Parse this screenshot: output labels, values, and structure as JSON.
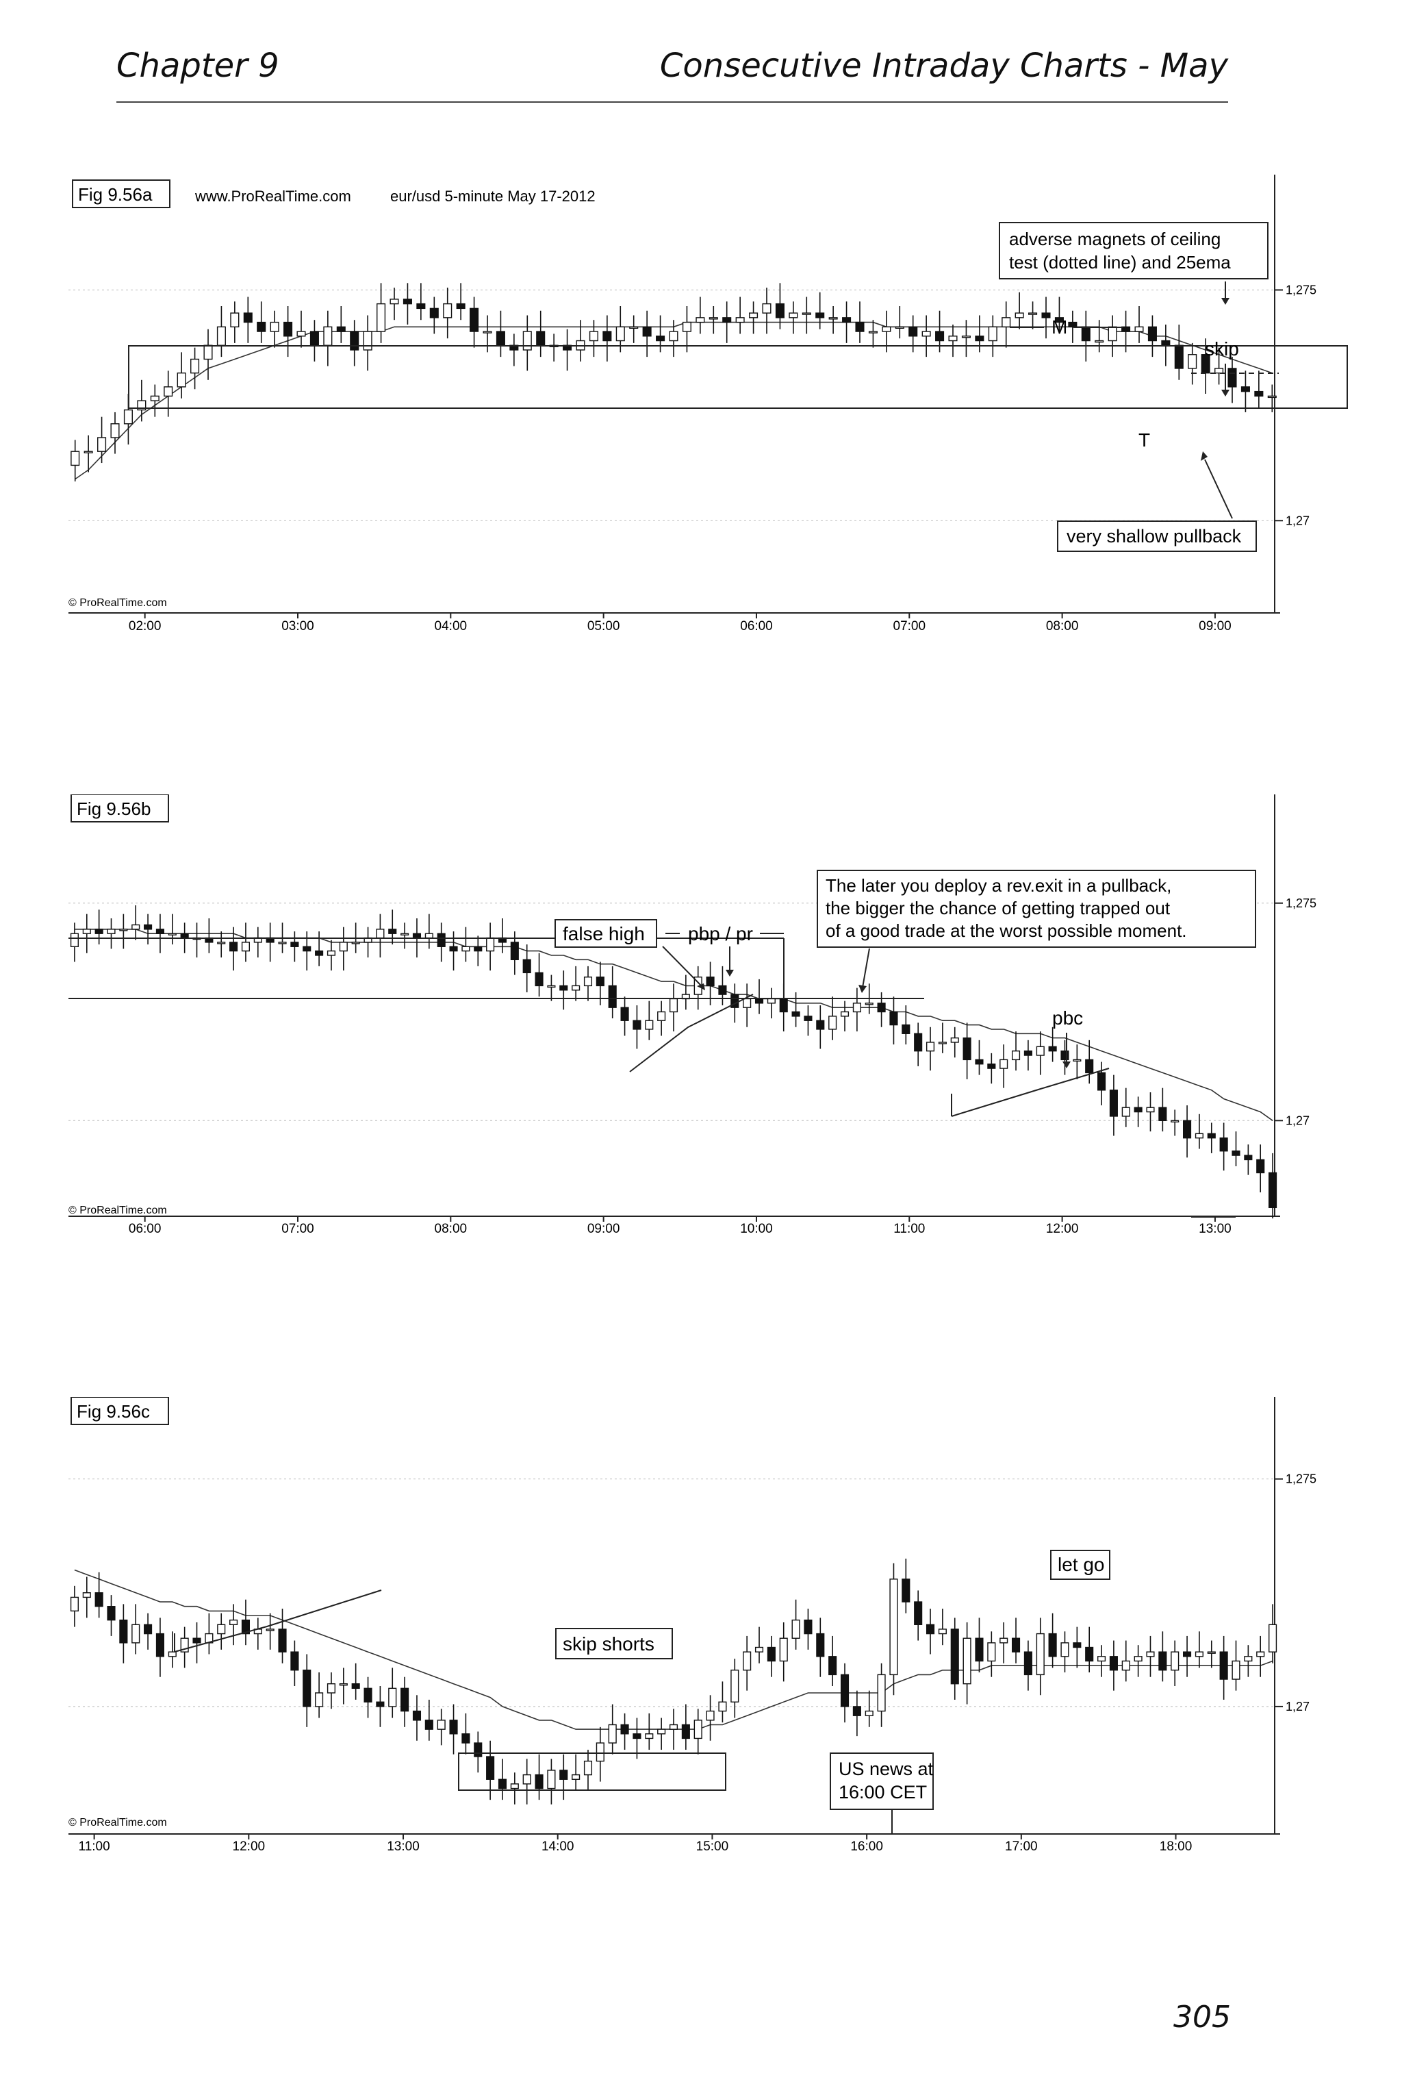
{
  "header": {
    "left": "Chapter 9",
    "right": "Consecutive Intraday Charts - May"
  },
  "page_number": "305",
  "charts": [
    {
      "fig_label": "Fig 9.56a",
      "subtitle_source": "www.ProRealTime.com",
      "subtitle_desc": "eur/usd  5-minute  May 17-2012",
      "watermark": "© ProRealTime.com",
      "price_labels": [
        {
          "price": 1.275,
          "text": "1,275"
        },
        {
          "price": 1.27,
          "text": "1,27"
        }
      ],
      "times": [
        "02:00",
        "03:00",
        "04:00",
        "05:00",
        "06:00",
        "07:00",
        "08:00",
        "09:00"
      ],
      "annotations": [
        {
          "id": "magnets",
          "lines": [
            "adverse magnets of ceiling",
            "test (dotted line) and 25ema"
          ],
          "boxed": true
        },
        {
          "id": "m",
          "text": "M",
          "boxed": false
        },
        {
          "id": "skip",
          "text": "skip",
          "boxed": false
        },
        {
          "id": "t",
          "text": "T",
          "boxed": false
        },
        {
          "id": "shallow",
          "text": "very shallow pullback",
          "boxed": true
        }
      ]
    },
    {
      "fig_label": "Fig 9.56b",
      "watermark": "© ProRealTime.com",
      "price_labels": [
        {
          "price": 1.275,
          "text": "1,275"
        },
        {
          "price": 1.27,
          "text": "1,27"
        }
      ],
      "times": [
        "06:00",
        "07:00",
        "08:00",
        "09:00",
        "10:00",
        "11:00",
        "12:00",
        "13:00"
      ],
      "annotations": [
        {
          "id": "false-high",
          "text": "false high",
          "boxed": true
        },
        {
          "id": "pbp",
          "text": "pbp / pr",
          "boxed": false
        },
        {
          "id": "later",
          "lines": [
            "The later you deploy a rev.exit in a pullback,",
            "the bigger the chance of getting trapped out",
            "of a good trade at the worst possible moment."
          ],
          "boxed": true
        },
        {
          "id": "pbc",
          "text": "pbc",
          "boxed": false
        }
      ]
    },
    {
      "fig_label": "Fig 9.56c",
      "watermark": "© ProRealTime.com",
      "price_labels": [
        {
          "price": 1.275,
          "text": "1,275"
        },
        {
          "price": 1.27,
          "text": "1,27"
        }
      ],
      "times": [
        "11:00",
        "12:00",
        "13:00",
        "14:00",
        "15:00",
        "16:00",
        "17:00",
        "18:00"
      ],
      "annotations": [
        {
          "id": "let-go",
          "text": "let go",
          "boxed": true
        },
        {
          "id": "skip-shorts",
          "text": "skip shorts",
          "boxed": true
        },
        {
          "id": "us-news",
          "lines": [
            "US news at",
            "16:00 CET"
          ],
          "boxed": true
        }
      ]
    }
  ],
  "chart_data": [
    {
      "type": "candlestick",
      "title": "eur/usd 5-minute May 17-2012",
      "x_range": [
        "01:30",
        "09:25"
      ],
      "ylim": [
        1.268,
        1.2775
      ],
      "grid": true,
      "close": [
        1.2715,
        1.2715,
        1.2718,
        1.2721,
        1.2724,
        1.2726,
        1.2727,
        1.2729,
        1.2732,
        1.2735,
        1.2738,
        1.2742,
        1.2745,
        1.2743,
        1.2741,
        1.2743,
        1.274,
        1.2741,
        1.2738,
        1.2742,
        1.2741,
        1.2737,
        1.2741,
        1.2747,
        1.2748,
        1.2747,
        1.2746,
        1.2744,
        1.2747,
        1.2746,
        1.2741,
        1.2741,
        1.2738,
        1.2737,
        1.2741,
        1.2738,
        1.2738,
        1.2737,
        1.2739,
        1.2741,
        1.2739,
        1.2742,
        1.2742,
        1.274,
        1.2739,
        1.2741,
        1.2743,
        1.2744,
        1.2744,
        1.2743,
        1.2744,
        1.2745,
        1.2747,
        1.2744,
        1.2745,
        1.2745,
        1.2744,
        1.2744,
        1.2743,
        1.2741,
        1.2741,
        1.2742,
        1.2742,
        1.274,
        1.2741,
        1.2739,
        1.274,
        1.274,
        1.2739,
        1.2742,
        1.2744,
        1.2745,
        1.2745,
        1.2744,
        1.2743,
        1.2742,
        1.2739,
        1.2739,
        1.2742,
        1.2741,
        1.2742,
        1.2739,
        1.2738,
        1.2733,
        1.2736,
        1.2732,
        1.2733,
        1.2729,
        1.2728,
        1.2727,
        1.2727
      ],
      "ema25": [
        1.2709,
        1.2711,
        1.2714,
        1.2717,
        1.272,
        1.2723,
        1.2725,
        1.2727,
        1.2729,
        1.2731,
        1.2733,
        1.2734,
        1.2735,
        1.2736,
        1.2737,
        1.2738,
        1.2739,
        1.274,
        1.2741,
        1.2741,
        1.2741,
        1.2741,
        1.2741,
        1.2741,
        1.2742,
        1.2742,
        1.2742,
        1.2742,
        1.2742,
        1.2742,
        1.2742,
        1.2742,
        1.2742,
        1.2742,
        1.2742,
        1.2742,
        1.2742,
        1.2742,
        1.2742,
        1.2742,
        1.2742,
        1.2742,
        1.2742,
        1.2742,
        1.2742,
        1.2742,
        1.2743,
        1.2743,
        1.2743,
        1.2743,
        1.2743,
        1.2743,
        1.2743,
        1.2743,
        1.2743,
        1.2743,
        1.2743,
        1.2743,
        1.2743,
        1.2743,
        1.2743,
        1.2742,
        1.2742,
        1.2742,
        1.2742,
        1.2742,
        1.2742,
        1.2742,
        1.2742,
        1.2742,
        1.2742,
        1.2742,
        1.2742,
        1.2742,
        1.2742,
        1.2742,
        1.2742,
        1.2742,
        1.2741,
        1.2741,
        1.2741,
        1.274,
        1.274,
        1.2739,
        1.2738,
        1.2737,
        1.2736,
        1.2735,
        1.2734,
        1.2733,
        1.2732
      ]
    },
    {
      "type": "candlestick",
      "title": "",
      "x_range": [
        "05:30",
        "13:25"
      ],
      "ylim": [
        1.2678,
        1.2775
      ],
      "grid": true,
      "close": [
        1.2743,
        1.2744,
        1.2743,
        1.2744,
        1.2744,
        1.2745,
        1.2744,
        1.2743,
        1.2743,
        1.2742,
        1.2742,
        1.2741,
        1.2741,
        1.2739,
        1.2741,
        1.2742,
        1.2741,
        1.2741,
        1.274,
        1.2739,
        1.2738,
        1.2739,
        1.2741,
        1.2741,
        1.2742,
        1.2744,
        1.2743,
        1.2743,
        1.2742,
        1.2743,
        1.274,
        1.2739,
        1.274,
        1.2739,
        1.2742,
        1.2741,
        1.2737,
        1.2734,
        1.2731,
        1.2731,
        1.273,
        1.2731,
        1.2733,
        1.2731,
        1.2726,
        1.2723,
        1.2721,
        1.2723,
        1.2725,
        1.2728,
        1.2729,
        1.2733,
        1.2731,
        1.2729,
        1.2726,
        1.2728,
        1.2727,
        1.2728,
        1.2725,
        1.2724,
        1.2723,
        1.2721,
        1.2724,
        1.2725,
        1.2727,
        1.2727,
        1.2725,
        1.2722,
        1.272,
        1.2716,
        1.2718,
        1.2718,
        1.2719,
        1.2714,
        1.2713,
        1.2712,
        1.2714,
        1.2716,
        1.2715,
        1.2717,
        1.2716,
        1.2714,
        1.2714,
        1.2711,
        1.2707,
        1.2701,
        1.2703,
        1.2702,
        1.2703,
        1.27,
        1.27,
        1.2696,
        1.2697,
        1.2696,
        1.2693,
        1.2692,
        1.2691,
        1.2688,
        1.268
      ],
      "ema25": [
        1.2744,
        1.2744,
        1.2744,
        1.2744,
        1.2744,
        1.2744,
        1.2743,
        1.2743,
        1.2743,
        1.2743,
        1.2743,
        1.2743,
        1.2743,
        1.2743,
        1.2742,
        1.2742,
        1.2742,
        1.2742,
        1.2742,
        1.2742,
        1.2742,
        1.2741,
        1.2741,
        1.2741,
        1.2741,
        1.2741,
        1.2741,
        1.2741,
        1.2741,
        1.2741,
        1.2741,
        1.2741,
        1.274,
        1.274,
        1.274,
        1.274,
        1.274,
        1.2739,
        1.2739,
        1.2738,
        1.2738,
        1.2737,
        1.2737,
        1.2736,
        1.2736,
        1.2735,
        1.2734,
        1.2733,
        1.2732,
        1.2732,
        1.2731,
        1.2731,
        1.2731,
        1.273,
        1.2729,
        1.2729,
        1.2728,
        1.2728,
        1.2728,
        1.2727,
        1.2727,
        1.2727,
        1.2726,
        1.2726,
        1.2726,
        1.2726,
        1.2726,
        1.2725,
        1.2725,
        1.2724,
        1.2724,
        1.2723,
        1.2723,
        1.2722,
        1.2722,
        1.2721,
        1.2721,
        1.272,
        1.272,
        1.272,
        1.2719,
        1.2719,
        1.2718,
        1.2717,
        1.2716,
        1.2715,
        1.2714,
        1.2713,
        1.2712,
        1.2711,
        1.271,
        1.2709,
        1.2708,
        1.2707,
        1.2705,
        1.2704,
        1.2703,
        1.2702,
        1.27
      ]
    },
    {
      "type": "candlestick",
      "title": "",
      "x_range": [
        "10:50",
        "18:40"
      ],
      "ylim": [
        1.2672,
        1.2768
      ],
      "grid": true,
      "close": [
        1.2724,
        1.2725,
        1.2722,
        1.2719,
        1.2714,
        1.2718,
        1.2716,
        1.2711,
        1.2712,
        1.2715,
        1.2714,
        1.2716,
        1.2718,
        1.2719,
        1.2716,
        1.2717,
        1.2717,
        1.2712,
        1.2708,
        1.27,
        1.2703,
        1.2705,
        1.2705,
        1.2704,
        1.2701,
        1.27,
        1.2704,
        1.2699,
        1.2697,
        1.2695,
        1.2697,
        1.2694,
        1.2692,
        1.2689,
        1.2684,
        1.2682,
        1.2683,
        1.2685,
        1.2682,
        1.2686,
        1.2684,
        1.2685,
        1.2688,
        1.2692,
        1.2696,
        1.2694,
        1.2693,
        1.2694,
        1.2695,
        1.2696,
        1.2693,
        1.2697,
        1.2699,
        1.2701,
        1.2708,
        1.2712,
        1.2713,
        1.271,
        1.2715,
        1.2719,
        1.2716,
        1.2711,
        1.2707,
        1.27,
        1.2698,
        1.2699,
        1.2707,
        1.2728,
        1.2723,
        1.2718,
        1.2716,
        1.2717,
        1.2705,
        1.2715,
        1.271,
        1.2714,
        1.2715,
        1.2712,
        1.2707,
        1.2716,
        1.2711,
        1.2714,
        1.2713,
        1.271,
        1.2711,
        1.2708,
        1.271,
        1.2711,
        1.2712,
        1.2708,
        1.2712,
        1.2711,
        1.2712,
        1.2712,
        1.2706,
        1.271,
        1.2711,
        1.2712,
        1.2718
      ],
      "ema25": [
        1.273,
        1.2729,
        1.2728,
        1.2727,
        1.2726,
        1.2725,
        1.2724,
        1.2723,
        1.2723,
        1.2722,
        1.2722,
        1.2721,
        1.2721,
        1.2721,
        1.272,
        1.272,
        1.272,
        1.2719,
        1.2718,
        1.2717,
        1.2716,
        1.2715,
        1.2714,
        1.2713,
        1.2712,
        1.2711,
        1.271,
        1.2709,
        1.2708,
        1.2707,
        1.2706,
        1.2705,
        1.2704,
        1.2703,
        1.2702,
        1.27,
        1.2699,
        1.2698,
        1.2697,
        1.2697,
        1.2696,
        1.2695,
        1.2695,
        1.2695,
        1.2695,
        1.2695,
        1.2695,
        1.2695,
        1.2695,
        1.2695,
        1.2695,
        1.2695,
        1.2696,
        1.2696,
        1.2697,
        1.2698,
        1.2699,
        1.27,
        1.2701,
        1.2702,
        1.2703,
        1.2703,
        1.2703,
        1.2703,
        1.2703,
        1.2703,
        1.2703,
        1.2705,
        1.2706,
        1.2707,
        1.2707,
        1.2708,
        1.2708,
        1.2708,
        1.2708,
        1.2709,
        1.2709,
        1.2709,
        1.2709,
        1.2709,
        1.2709,
        1.2709,
        1.2709,
        1.2709,
        1.2709,
        1.2709,
        1.2709,
        1.2709,
        1.2709,
        1.2709,
        1.2709,
        1.2709,
        1.2709,
        1.2709,
        1.2709,
        1.2709,
        1.2709,
        1.2709,
        1.271
      ]
    }
  ]
}
